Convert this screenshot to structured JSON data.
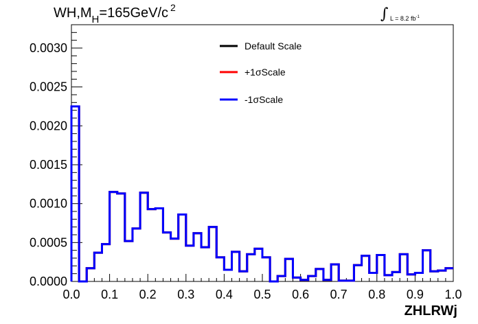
{
  "title": {
    "prefix": "WH,M",
    "subscript": "H",
    "suffix": "=165GeV/c",
    "superscript": "2"
  },
  "luminosity": {
    "integral_symbol": "∫",
    "text": "L = 8.2 fb",
    "superscript": "-1"
  },
  "chart_data": {
    "type": "line",
    "xlabel": "ZHLRWj",
    "ylabel": "",
    "xlim": [
      0,
      1
    ],
    "ylim": [
      0,
      0.0033
    ],
    "x_ticks": [
      "0.0",
      "0.1",
      "0.2",
      "0.3",
      "0.4",
      "0.5",
      "0.6",
      "0.7",
      "0.8",
      "0.9",
      "1.0"
    ],
    "y_ticks": [
      "0.0000",
      "0.0005",
      "0.0010",
      "0.0015",
      "0.0020",
      "0.0025",
      "0.0030"
    ],
    "legend_placement": "top-center",
    "bin_width": 0.02,
    "series": [
      {
        "name": "Default Scale",
        "color": "#000000",
        "values": [
          0.00225,
          0.0,
          0.00017,
          0.00037,
          0.00048,
          0.00115,
          0.00113,
          0.00052,
          0.00068,
          0.00114,
          0.00093,
          0.00094,
          0.00063,
          0.00055,
          0.00086,
          0.00046,
          0.00062,
          0.00044,
          0.0007,
          0.00031,
          0.00015,
          0.00038,
          0.00013,
          0.00035,
          0.00042,
          0.00031,
          0.0,
          7e-05,
          0.00029,
          5e-05,
          2e-05,
          7e-05,
          0.00016,
          2e-05,
          0.00022,
          1e-05,
          1e-05,
          0.00021,
          0.00033,
          0.00011,
          0.00034,
          8e-05,
          0.00012,
          0.00035,
          9e-05,
          0.00011,
          0.0004,
          0.00013,
          0.00014,
          0.00017
        ]
      },
      {
        "name": "+1σScale",
        "color": "#ff0000",
        "values": [
          0.00225,
          0.0,
          0.00017,
          0.00037,
          0.00048,
          0.00115,
          0.00113,
          0.00052,
          0.00068,
          0.00114,
          0.00093,
          0.00094,
          0.00063,
          0.00055,
          0.00086,
          0.00046,
          0.00062,
          0.00044,
          0.0007,
          0.00031,
          0.00015,
          0.00038,
          0.00013,
          0.00035,
          0.00042,
          0.00031,
          0.0,
          7e-05,
          0.00029,
          5e-05,
          2e-05,
          7e-05,
          0.00016,
          2e-05,
          0.00022,
          1e-05,
          1e-05,
          0.00021,
          0.00033,
          0.00011,
          0.00034,
          8e-05,
          0.00012,
          0.00035,
          9e-05,
          0.00011,
          0.0004,
          0.00013,
          0.00014,
          0.00017
        ]
      },
      {
        "name": "-1σScale",
        "color": "#0000ff",
        "values": [
          0.00225,
          0.0,
          0.00017,
          0.00037,
          0.00048,
          0.00115,
          0.00113,
          0.00052,
          0.00068,
          0.00114,
          0.00093,
          0.00094,
          0.00063,
          0.00055,
          0.00086,
          0.00046,
          0.00062,
          0.00044,
          0.0007,
          0.00031,
          0.00015,
          0.00038,
          0.00013,
          0.00035,
          0.00042,
          0.00031,
          0.0,
          7e-05,
          0.00029,
          5e-05,
          2e-05,
          7e-05,
          0.00016,
          2e-05,
          0.00022,
          1e-05,
          1e-05,
          0.00021,
          0.00033,
          0.00011,
          0.00034,
          8e-05,
          0.00012,
          0.00035,
          9e-05,
          0.00011,
          0.0004,
          0.00013,
          0.00014,
          0.00017
        ]
      }
    ]
  }
}
